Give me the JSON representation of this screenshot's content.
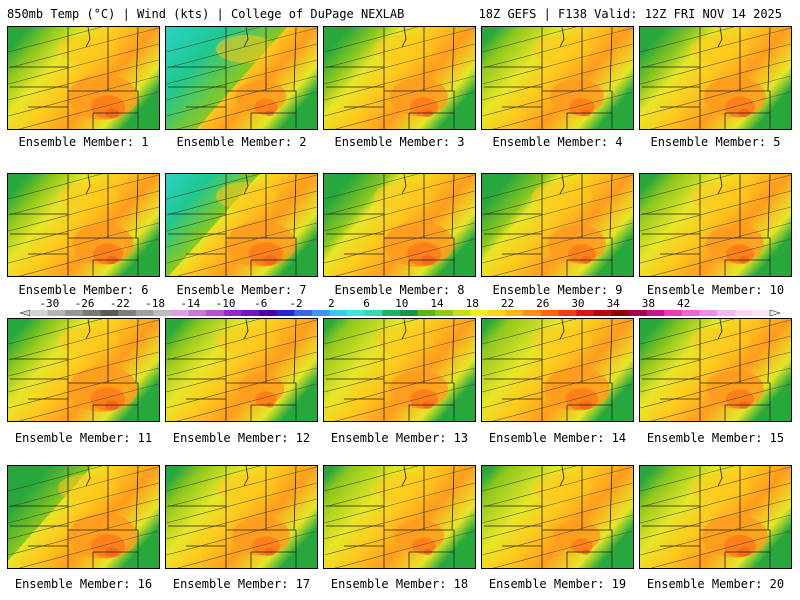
{
  "header": {
    "left": "850mb Temp (°C) | Wind (kts) | College of DuPage NEXLAB",
    "right": "18Z GEFS | F138 Valid: 12Z FRI NOV 14 2025"
  },
  "panels": [
    {
      "label": "Ensemble Member: 1",
      "cool": 0.2,
      "warm": 0.7
    },
    {
      "label": "Ensemble Member: 2",
      "cool": 0.6,
      "warm": 0.45
    },
    {
      "label": "Ensemble Member: 3",
      "cool": 0.25,
      "warm": 0.55
    },
    {
      "label": "Ensemble Member: 4",
      "cool": 0.15,
      "warm": 0.5
    },
    {
      "label": "Ensemble Member: 5",
      "cool": 0.25,
      "warm": 0.6
    },
    {
      "label": "Ensemble Member: 6",
      "cool": 0.2,
      "warm": 0.6
    },
    {
      "label": "Ensemble Member: 7",
      "cool": 0.45,
      "warm": 0.7
    },
    {
      "label": "Ensemble Member: 8",
      "cool": 0.3,
      "warm": 0.7
    },
    {
      "label": "Ensemble Member: 9",
      "cool": 0.3,
      "warm": 0.55
    },
    {
      "label": "Ensemble Member: 10",
      "cool": 0.15,
      "warm": 0.55
    },
    {
      "label": "Ensemble Member: 11",
      "cool": 0.2,
      "warm": 0.7
    },
    {
      "label": "Ensemble Member: 12",
      "cool": 0.15,
      "warm": 0.4
    },
    {
      "label": "Ensemble Member: 13",
      "cool": 0.1,
      "warm": 0.55
    },
    {
      "label": "Ensemble Member: 14",
      "cool": 0.1,
      "warm": 0.65
    },
    {
      "label": "Ensemble Member: 15",
      "cool": 0.2,
      "warm": 0.55
    },
    {
      "label": "Ensemble Member: 16",
      "cool": 0.4,
      "warm": 0.7
    },
    {
      "label": "Ensemble Member: 17",
      "cool": 0.15,
      "warm": 0.55
    },
    {
      "label": "Ensemble Member: 18",
      "cool": 0.1,
      "warm": 0.45
    },
    {
      "label": "Ensemble Member: 19",
      "cool": 0.1,
      "warm": 0.4
    },
    {
      "label": "Ensemble Member: 20",
      "cool": 0.15,
      "warm": 0.65
    }
  ],
  "colorbar": {
    "labels": [
      "-30",
      "-26",
      "-22",
      "-18",
      "-14",
      "-10",
      "-6",
      "-2",
      "2",
      "6",
      "10",
      "14",
      "18",
      "22",
      "26",
      "30",
      "34",
      "38",
      "42"
    ],
    "colors": [
      "#d2d2d2",
      "#b4b4b4",
      "#969696",
      "#787878",
      "#5a5a5a",
      "#7d7d7d",
      "#a0a0a0",
      "#bdbdbd",
      "#dca0e6",
      "#c878dc",
      "#b450d2",
      "#9628c8",
      "#7814b4",
      "#5000a0",
      "#2828c8",
      "#3c64dc",
      "#3c96f0",
      "#3cc8f0",
      "#3ce6dc",
      "#3cd2b4",
      "#1eb464",
      "#189648",
      "#5ab41e",
      "#8cc81e",
      "#c8dc1e",
      "#f0f01e",
      "#ffd21e",
      "#ffb41e",
      "#ff8c1e",
      "#ff6414",
      "#f03c14",
      "#dc1414",
      "#b40a0a",
      "#8c0000",
      "#a0004b",
      "#c8148c",
      "#e63cbe",
      "#f064dc",
      "#f08cf0",
      "#f5b4f5",
      "#f8d2f8",
      "#fae6fa"
    ]
  },
  "palette": {
    "cyan": "#2ad2c8",
    "teal": "#20c890",
    "green": "#28a83c",
    "lime": "#8cc81e",
    "yellow": "#e6e628",
    "gold": "#ffc81e",
    "orange": "#ff9c1e",
    "dorange": "#ff7818",
    "red": "#f05a18"
  }
}
